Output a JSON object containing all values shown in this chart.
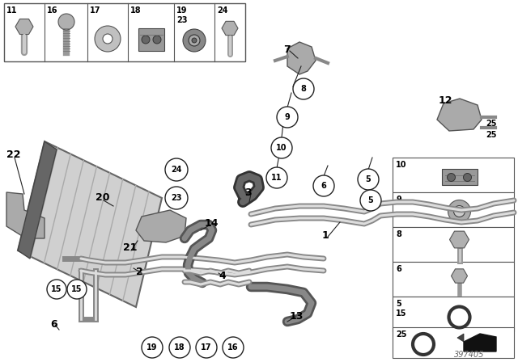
{
  "bg_color": "#ffffff",
  "fig_width": 6.4,
  "fig_height": 4.48,
  "dpi": 100,
  "part_number": "397405",
  "text_color": "#000000",
  "line_color": "#222222",
  "pipe_dark": "#888888",
  "pipe_light": "#cccccc",
  "part_gray": "#aaaaaa",
  "part_dark": "#666666"
}
